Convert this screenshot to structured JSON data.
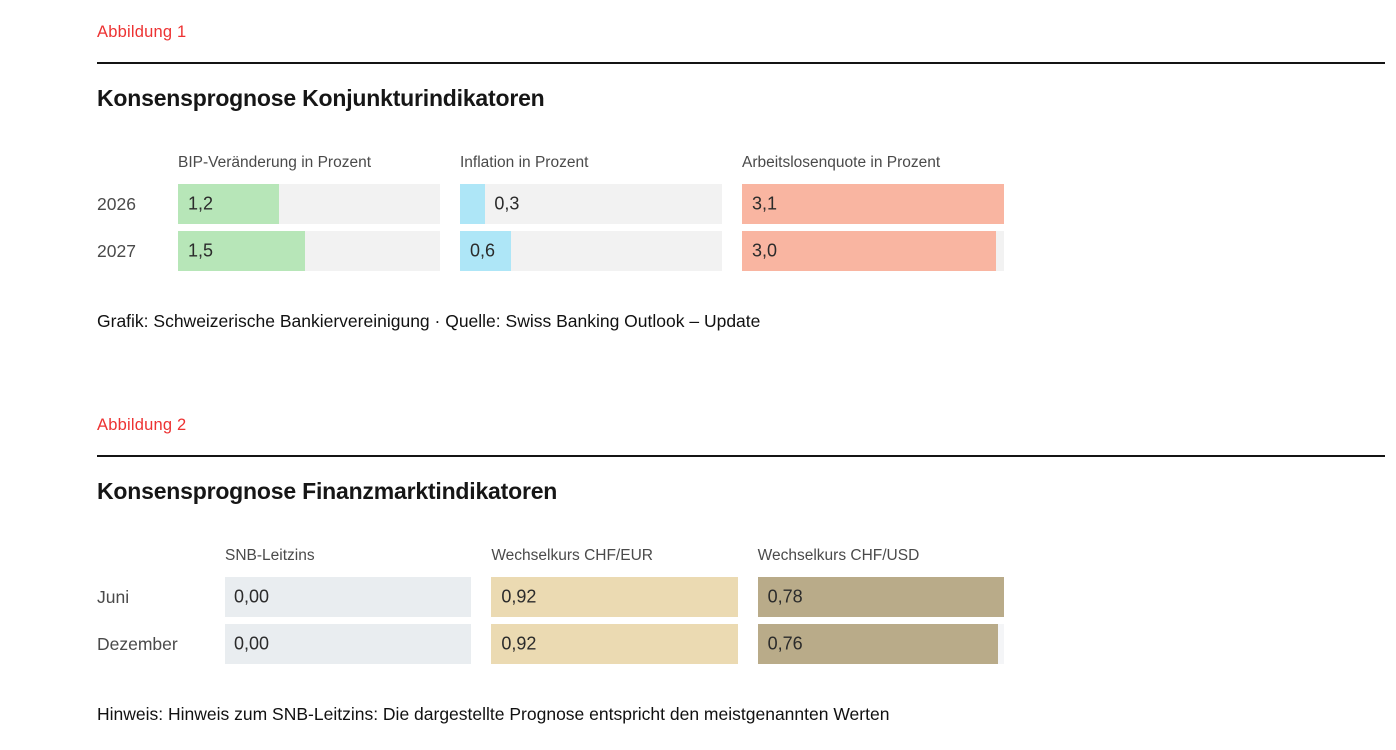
{
  "colors": {
    "figure_label_red": "#ed3232",
    "title_black": "#161616",
    "header_gray": "#4a4a4a",
    "value_text": "#2b2b2b",
    "track_gray": "#f2f2f2",
    "bip_green": "#b7e6b8",
    "inflation_blue": "#aee6f7",
    "arbeitslosen_salmon": "#f9b5a1",
    "snb_track_bluegray": "#e9edf0",
    "chf_eur_tan": "#ebdab2",
    "chf_usd_khaki": "#b9ab89"
  },
  "figures": [
    {
      "label": "Abbildung 1",
      "title": "Konsensprognose Konjunkturindikatoren",
      "footer": "Grafik: Schweizerische Bankiervereinigung · Quelle: Swiss Banking Outlook – Update"
    },
    {
      "label": "Abbildung 2",
      "title": "Konsensprognose Finanzmarktindikatoren",
      "footer": "Hinweis: Hinweis zum SNB-Leitzins: Die dargestellte Prognose entspricht den meistgenannten Werten"
    }
  ],
  "chart_data": [
    {
      "type": "bar",
      "title": "Konsensprognose Konjunkturindikatoren",
      "categories": [
        "2026",
        "2027"
      ],
      "series": [
        {
          "name": "BIP-Veränderung in Prozent",
          "values": [
            1.2,
            1.5
          ],
          "labels": [
            "1,2",
            "1,5"
          ],
          "bar_color": "#b7e6b8",
          "track_color": "#f2f2f2"
        },
        {
          "name": "Inflation in Prozent",
          "values": [
            0.3,
            0.6
          ],
          "labels": [
            "0,3",
            "0,6"
          ],
          "bar_color": "#aee6f7",
          "track_color": "#f2f2f2"
        },
        {
          "name": "Arbeitslosenquote in Prozent",
          "values": [
            3.1,
            3.0
          ],
          "labels": [
            "3,1",
            "3,0"
          ],
          "bar_color": "#f9b5a1",
          "track_color": "#f2f2f2"
        }
      ],
      "scale": {
        "mode": "fixed",
        "min": 0,
        "max": 3.1,
        "shared_across_columns": true
      },
      "legend": "none",
      "grid": "off",
      "value_format": "decimal comma, 1 digit"
    },
    {
      "type": "bar",
      "title": "Konsensprognose Finanzmarktindikatoren",
      "categories": [
        "Juni",
        "Dezember"
      ],
      "series": [
        {
          "name": "SNB-Leitzins",
          "values": [
            0.0,
            0.0
          ],
          "labels": [
            "0,00",
            "0,00"
          ],
          "bar_color": "#dfe5ea",
          "track_color": "#e9edf0"
        },
        {
          "name": "Wechselkurs CHF/EUR",
          "values": [
            0.92,
            0.92
          ],
          "labels": [
            "0,92",
            "0,92"
          ],
          "bar_color": "#ebdab2",
          "track_color": "#f3f3f3"
        },
        {
          "name": "Wechselkurs CHF/USD",
          "values": [
            0.78,
            0.76
          ],
          "labels": [
            "0,78",
            "0,76"
          ],
          "bar_color": "#b9ab89",
          "track_color": "#f4f5f7"
        }
      ],
      "scale": {
        "mode": "column-max",
        "min": 0
      },
      "legend": "none",
      "grid": "off",
      "value_format": "decimal comma, 2 digits"
    }
  ]
}
